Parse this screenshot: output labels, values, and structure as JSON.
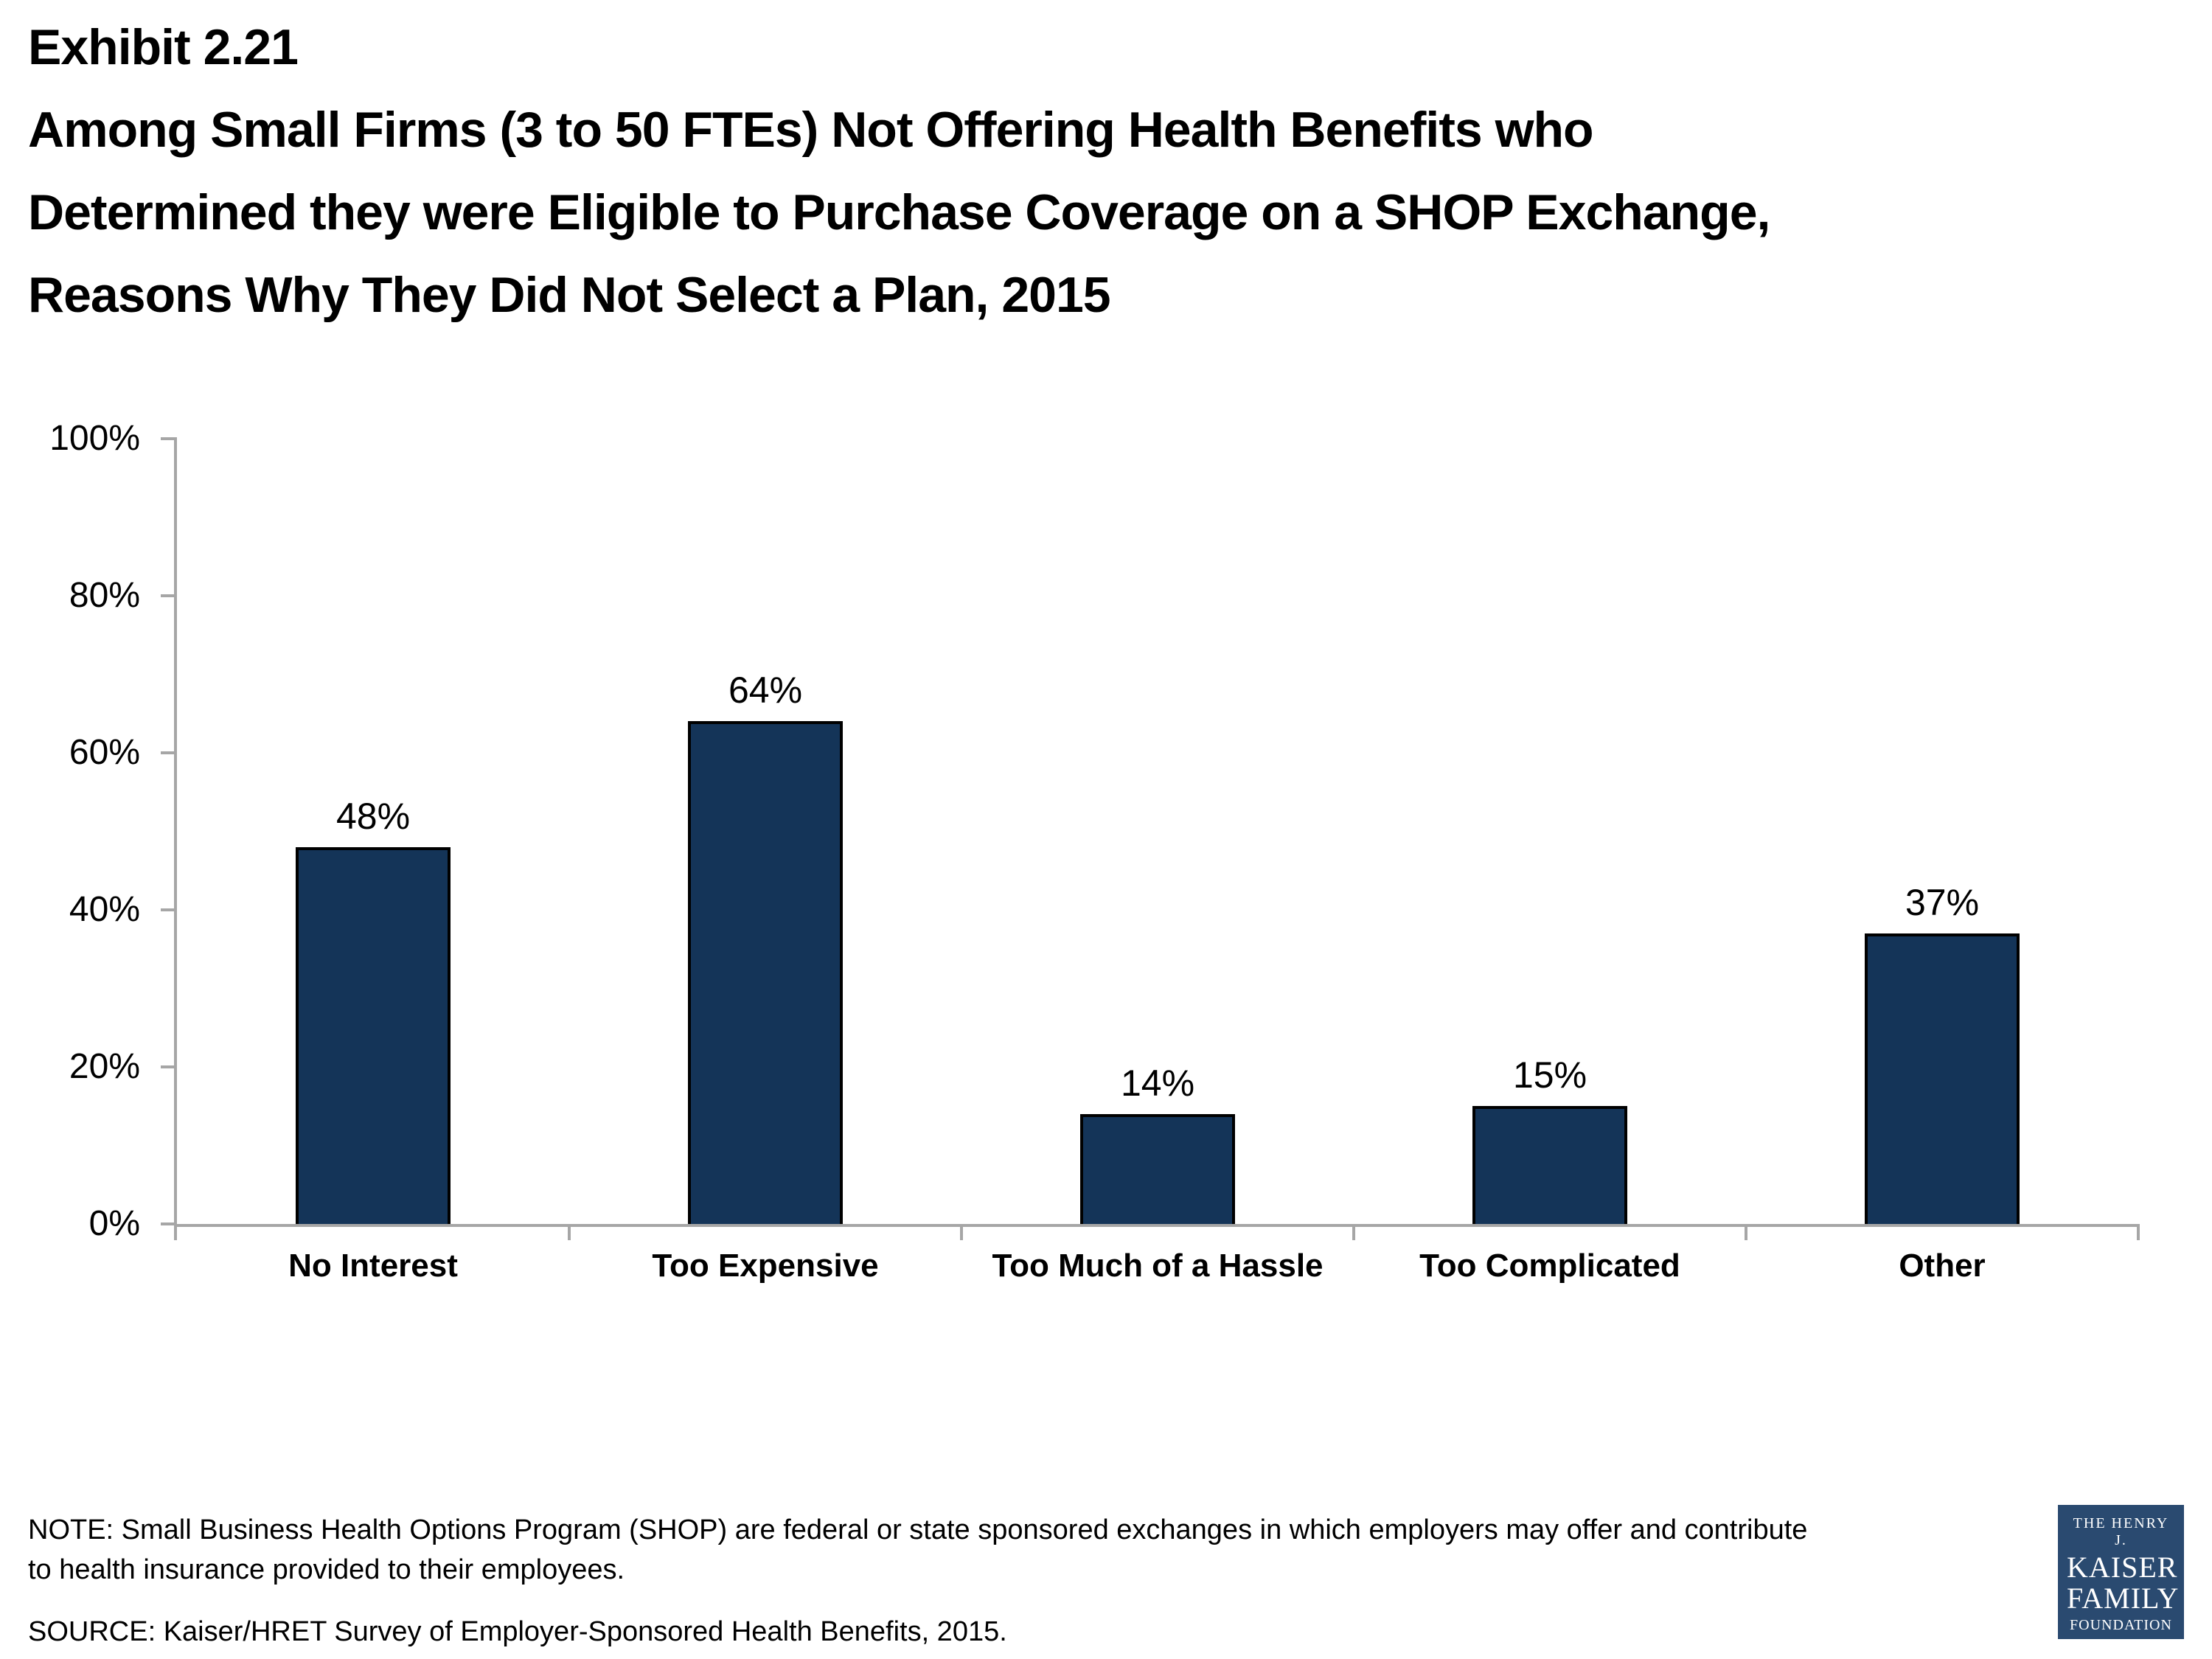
{
  "header": {
    "exhibit": "Exhibit 2.21",
    "title_lines": [
      "Among Small Firms (3 to 50 FTEs) Not Offering Health Benefits who",
      "Determined they were Eligible to Purchase Coverage on a SHOP Exchange,",
      "Reasons Why They Did Not Select a Plan, 2015"
    ]
  },
  "chart_data": {
    "type": "bar",
    "categories": [
      "No Interest",
      "Too Expensive",
      "Too Much of a Hassle",
      "Too Complicated",
      "Other"
    ],
    "values": [
      48,
      64,
      14,
      15,
      37
    ],
    "value_labels": [
      "48%",
      "64%",
      "14%",
      "15%",
      "37%"
    ],
    "title": "",
    "xlabel": "",
    "ylabel": "",
    "ylim": [
      0,
      100
    ],
    "yticks": [
      0,
      20,
      40,
      60,
      80,
      100
    ],
    "ytick_labels": [
      "0%",
      "20%",
      "40%",
      "60%",
      "80%",
      "100%"
    ],
    "grid": false,
    "legend": false,
    "bar_color": "#143458",
    "bar_border_color": "#000000",
    "axis_color": "#A6A6A6"
  },
  "footer": {
    "note_lines": [
      "NOTE: Small Business Health Options Program (SHOP) are federal or state sponsored exchanges in which employers may offer and contribute",
      "to health insurance provided to their employees."
    ],
    "source": "SOURCE: Kaiser/HRET Survey of Employer-Sponsored Health Benefits, 2015."
  },
  "logo": {
    "top": "THE HENRY J.",
    "name_line1": "KAISER",
    "name_line2": "FAMILY",
    "bottom": "FOUNDATION",
    "bg_color": "#2A4A70"
  }
}
